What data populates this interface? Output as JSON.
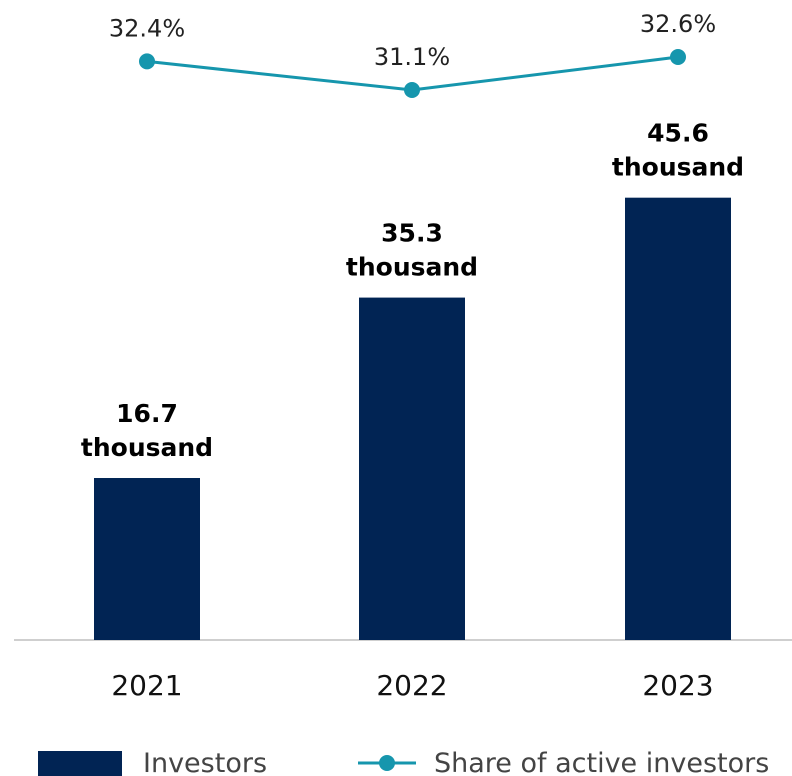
{
  "chart_data": {
    "type": "bar",
    "categories": [
      "2021",
      "2022",
      "2023"
    ],
    "series": [
      {
        "name": "Investors",
        "type": "bar",
        "values": [
          16.7,
          35.3,
          45.6
        ],
        "labels": [
          "16.7 thousand",
          "35.3 thousand",
          "45.6 thousand"
        ],
        "color": "#012454"
      },
      {
        "name": "Share of active investors",
        "type": "line",
        "values": [
          32.4,
          31.1,
          32.6
        ],
        "labels": [
          "32.4%",
          "31.1%",
          "32.6%"
        ],
        "color": "#1696ad"
      }
    ],
    "legend_position": "bottom",
    "grid": false
  }
}
